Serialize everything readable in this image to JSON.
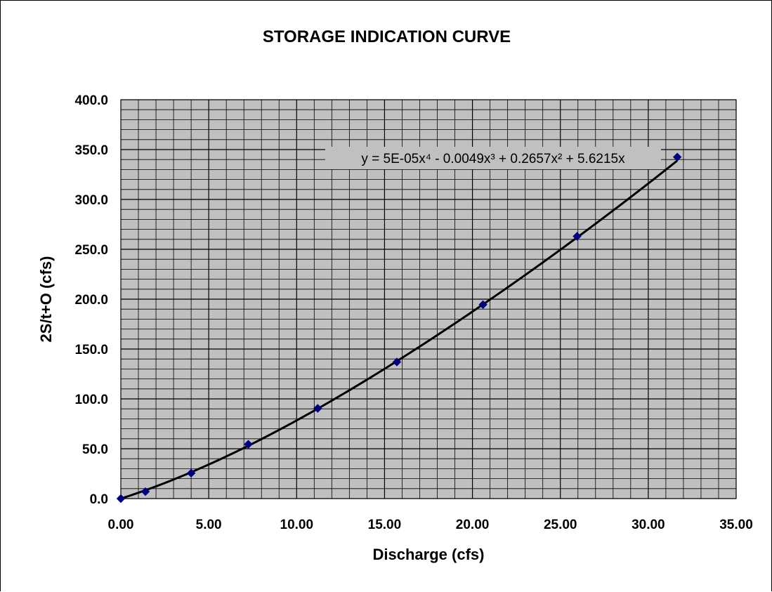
{
  "chart_data": {
    "type": "scatter",
    "title": "STORAGE INDICATION CURVE",
    "xlabel": "Discharge (cfs)",
    "ylabel": "2S/t+O (cfs)",
    "xlim": [
      0,
      35
    ],
    "ylim": [
      0,
      400
    ],
    "x_ticks": [
      "0.00",
      "5.00",
      "10.00",
      "15.00",
      "20.00",
      "25.00",
      "30.00",
      "35.00"
    ],
    "y_ticks": [
      "0.0",
      "50.0",
      "100.0",
      "150.0",
      "200.0",
      "250.0",
      "300.0",
      "350.0",
      "400.0"
    ],
    "grid": true,
    "grid_minor": true,
    "legend": "none",
    "series": [
      {
        "x": [
          0.0,
          1.4,
          4.0,
          7.25,
          11.2,
          15.7,
          20.6,
          25.95,
          31.65
        ],
        "y": [
          0.0,
          7.0,
          25.5,
          54.5,
          90.5,
          137.0,
          194.5,
          263.0,
          342.5
        ]
      }
    ],
    "trendline": {
      "type": "polynomial",
      "order": 4,
      "coefficients": [
        5e-05,
        -0.0049,
        0.2657,
        5.6215,
        0
      ],
      "equation": "y = 5E-05x⁴ - 0.0049x³ + 0.2657x² + 5.6215x"
    },
    "colors": {
      "plot_background": "#c0c0c0",
      "gridline": "#000000",
      "marker": "#000080",
      "trendline": "#000000"
    }
  }
}
